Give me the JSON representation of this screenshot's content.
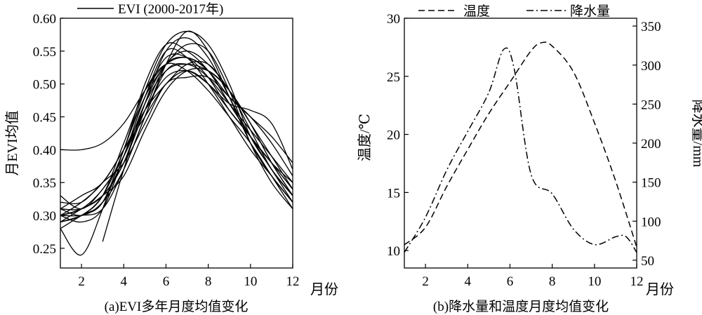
{
  "chart_data": [
    {
      "panel": "a",
      "type": "line",
      "caption": "(a)EVI多年月度均值变化",
      "xlabel": "月份",
      "ylabel": "月EVI均值",
      "xlim": [
        1,
        12
      ],
      "ylim": [
        0.22,
        0.6
      ],
      "xticks": [
        2,
        4,
        6,
        8,
        10,
        12
      ],
      "yticks": [
        0.25,
        0.3,
        0.35,
        0.4,
        0.45,
        0.5,
        0.55,
        0.6
      ],
      "yticklabels": [
        "0.25",
        "0.30",
        "0.35",
        "0.40",
        "0.45",
        "0.50",
        "0.55",
        "0.60"
      ],
      "legend": {
        "label": "EVI (2000-2017年)",
        "placement": "top"
      },
      "series": [
        {
          "x": [
            1,
            2,
            3,
            4,
            5,
            6,
            7,
            8,
            9,
            10,
            11,
            12
          ],
          "y": [
            0.4,
            0.4,
            0.41,
            0.44,
            0.49,
            0.53,
            0.54,
            0.52,
            0.48,
            0.45,
            0.42,
            0.38
          ]
        },
        {
          "x": [
            1,
            2,
            3,
            4,
            5,
            6,
            7,
            8,
            9,
            10,
            11,
            12
          ],
          "y": [
            0.28,
            0.24,
            0.31,
            0.4,
            0.48,
            0.53,
            0.56,
            0.55,
            0.49,
            0.41,
            0.35,
            0.31
          ]
        },
        {
          "x": [
            1,
            2,
            3,
            4,
            5,
            6,
            7,
            8,
            9,
            10,
            11,
            12
          ],
          "y": [
            0.3,
            0.31,
            0.33,
            0.38,
            0.47,
            0.55,
            0.57,
            0.54,
            0.48,
            0.42,
            0.38,
            0.34
          ]
        },
        {
          "x": [
            1,
            2,
            3,
            4,
            5,
            6,
            7,
            8,
            9,
            10,
            11,
            12
          ],
          "y": [
            0.29,
            0.3,
            0.33,
            0.4,
            0.5,
            0.56,
            0.55,
            0.52,
            0.47,
            0.42,
            0.37,
            0.33
          ]
        },
        {
          "x": [
            1,
            2,
            3,
            4,
            5,
            6,
            7,
            8,
            9,
            10,
            11,
            12
          ],
          "y": [
            0.31,
            0.3,
            0.32,
            0.37,
            0.45,
            0.52,
            0.53,
            0.51,
            0.47,
            0.43,
            0.39,
            0.35
          ]
        },
        {
          "x": [
            1,
            2,
            3,
            4,
            5,
            6,
            7,
            8,
            9,
            10,
            11,
            12
          ],
          "y": [
            0.3,
            0.32,
            0.35,
            0.4,
            0.46,
            0.5,
            0.53,
            0.53,
            0.49,
            0.44,
            0.39,
            0.34
          ]
        },
        {
          "x": [
            1,
            2,
            3,
            4,
            5,
            6,
            7,
            8,
            9,
            10,
            11,
            12
          ],
          "y": [
            0.33,
            0.31,
            0.34,
            0.39,
            0.46,
            0.51,
            0.52,
            0.5,
            0.47,
            0.46,
            0.44,
            0.37
          ]
        },
        {
          "x": [
            1,
            2,
            3,
            4,
            5,
            6,
            7,
            8,
            9,
            10,
            11,
            12
          ],
          "y": [
            0.3,
            0.3,
            0.31,
            0.37,
            0.45,
            0.53,
            0.58,
            0.55,
            0.48,
            0.41,
            0.36,
            0.32
          ]
        },
        {
          "x": [
            1,
            2,
            3,
            4,
            5,
            6,
            7,
            8,
            9,
            10,
            11,
            12
          ],
          "y": [
            0.29,
            0.31,
            0.33,
            0.38,
            0.46,
            0.53,
            0.55,
            0.53,
            0.49,
            0.43,
            0.37,
            0.33
          ]
        },
        {
          "x": [
            1,
            2,
            3,
            4,
            5,
            6,
            7,
            8,
            9,
            10,
            11,
            12
          ],
          "y": [
            0.28,
            0.3,
            0.32,
            0.39,
            0.48,
            0.54,
            0.54,
            0.51,
            0.46,
            0.42,
            0.38,
            0.34
          ]
        },
        {
          "x": [
            1,
            2,
            3,
            4,
            5,
            6,
            7,
            8,
            9,
            10,
            11,
            12
          ],
          "y": [
            0.31,
            0.31,
            0.33,
            0.36,
            0.43,
            0.49,
            0.52,
            0.52,
            0.49,
            0.44,
            0.38,
            0.33
          ]
        },
        {
          "x": [
            1,
            2,
            3,
            4,
            5,
            6,
            7,
            8,
            9,
            10,
            11,
            12
          ],
          "y": [
            0.3,
            0.29,
            0.31,
            0.39,
            0.48,
            0.55,
            0.54,
            0.5,
            0.45,
            0.4,
            0.36,
            0.32
          ]
        },
        {
          "x": [
            1,
            2,
            3,
            4,
            5,
            6,
            7,
            8,
            9,
            10,
            11,
            12
          ],
          "y": [
            0.32,
            0.32,
            0.35,
            0.38,
            0.44,
            0.5,
            0.51,
            0.51,
            0.48,
            0.45,
            0.41,
            0.36
          ]
        },
        {
          "x": [
            1,
            2,
            3,
            4,
            5,
            6,
            7,
            8,
            9,
            10,
            11,
            12
          ],
          "y": [
            0.29,
            0.3,
            0.32,
            0.4,
            0.49,
            0.56,
            0.58,
            0.56,
            0.5,
            0.42,
            0.37,
            0.32
          ]
        },
        {
          "x": [
            1,
            2,
            3,
            4,
            5,
            6,
            7,
            8,
            9,
            10,
            11,
            12
          ],
          "y": [
            0.3,
            0.31,
            0.34,
            0.39,
            0.47,
            0.52,
            0.53,
            0.52,
            0.49,
            0.44,
            0.38,
            0.33
          ]
        },
        {
          "x": [
            1,
            2,
            3,
            4,
            5,
            6,
            7,
            8,
            9,
            10,
            11,
            12
          ],
          "y": [
            0.31,
            0.33,
            0.35,
            0.4,
            0.45,
            0.5,
            0.52,
            0.5,
            0.46,
            0.42,
            0.38,
            0.35
          ]
        },
        {
          "x": [
            1,
            2,
            3,
            4,
            5,
            6,
            7,
            8,
            9,
            10,
            11,
            12
          ],
          "y": [
            0.29,
            0.3,
            0.33,
            0.41,
            0.49,
            0.53,
            0.52,
            0.49,
            0.45,
            0.41,
            0.36,
            0.31
          ]
        },
        {
          "x": [
            3,
            4,
            5,
            6,
            7,
            8,
            9,
            10,
            11,
            12
          ],
          "y": [
            0.26,
            0.37,
            0.47,
            0.53,
            0.54,
            0.52,
            0.47,
            0.42,
            0.37,
            0.33
          ]
        }
      ]
    },
    {
      "panel": "b",
      "type": "line",
      "caption": "(b)降水量和温度月度均值变化",
      "xlabel": "月份",
      "ylabel": "温度/℃",
      "ylabel_right": "降水量/mm",
      "xlim": [
        1,
        12
      ],
      "ylim": [
        8.5,
        30
      ],
      "ylim_right": [
        40,
        360
      ],
      "xticks": [
        2,
        4,
        6,
        8,
        10,
        12
      ],
      "yticks": [
        10,
        15,
        20,
        25,
        30
      ],
      "yticks_right": [
        50,
        100,
        150,
        200,
        250,
        300,
        350
      ],
      "legend_placement": "top",
      "series": [
        {
          "name": "温度",
          "axis": "left",
          "style": "dashed",
          "x": [
            1,
            2,
            3,
            4,
            5,
            6,
            7,
            7.5,
            8,
            9,
            10,
            11,
            12
          ],
          "y": [
            10.5,
            12.0,
            15.5,
            18.7,
            21.8,
            24.5,
            27.2,
            27.9,
            27.6,
            25.4,
            21.0,
            16.0,
            10.3
          ]
        },
        {
          "name": "降水量",
          "axis": "right",
          "style": "dashdot",
          "x": [
            1,
            2,
            3,
            4,
            5,
            5.7,
            6.2,
            7,
            8,
            9,
            10,
            11,
            11.5,
            12
          ],
          "y": [
            60,
            105,
            165,
            215,
            265,
            320,
            295,
            160,
            135,
            90,
            70,
            80,
            80,
            60
          ]
        }
      ]
    }
  ]
}
